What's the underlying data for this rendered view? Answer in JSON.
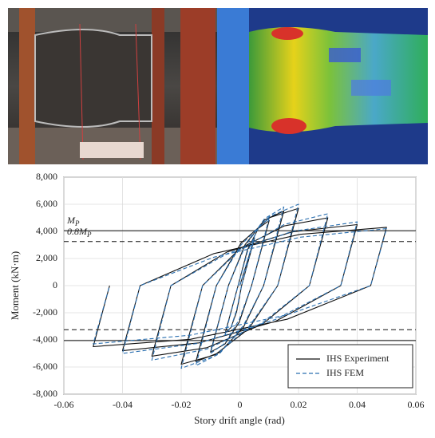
{
  "chart_data": {
    "type": "line",
    "x_label": "Story drift angle (rad)",
    "y_label": "Moment (kN·m)",
    "xlim": [
      -0.06,
      0.06
    ],
    "ylim": [
      -8000,
      8000
    ],
    "xticks": [
      -0.06,
      -0.04,
      -0.02,
      0,
      0.02,
      0.04,
      0.06
    ],
    "yticks": [
      {
        "value": -8000,
        "label": "-8,000"
      },
      {
        "value": -6000,
        "label": "-6,000"
      },
      {
        "value": -4000,
        "label": "-4,000"
      },
      {
        "value": -2000,
        "label": "-2,000"
      },
      0,
      {
        "value": 2000,
        "label": "2,000"
      },
      {
        "value": 4000,
        "label": "4,000"
      },
      {
        "value": 6000,
        "label": "6,000"
      },
      {
        "value": 8000,
        "label": "8,000"
      }
    ],
    "grid": true,
    "legend": "lower right",
    "reference_lines": [
      {
        "value": 4050,
        "label": "M",
        "subscript": "P",
        "style": "solid"
      },
      {
        "value": 3250,
        "label": "0.8M",
        "subscript": "P",
        "style": "dashed"
      },
      {
        "value": -3250,
        "style": "dashed"
      },
      {
        "value": -4050,
        "style": "solid"
      }
    ],
    "x": [
      0,
      0.005,
      0.0006,
      -0.0011,
      -0.003,
      -0.005,
      -0.0006,
      0.0026,
      0.0063,
      0.01,
      0.004,
      -0.0002,
      -0.0051,
      -0.01,
      -0.0039,
      0.0018,
      0.0084,
      0.015,
      0.0081,
      0.0012,
      -0.0069,
      -0.015,
      -0.008,
      0.0004,
      0.0102,
      0.02,
      0.0129,
      0.003,
      -0.0085,
      -0.02,
      -0.0127,
      0.0001,
      0.0151,
      0.03,
      0.0237,
      0.0076,
      -0.0112,
      -0.03,
      -0.0235,
      -0.0044,
      0.0178,
      0.04,
      0.0344,
      0.0121,
      -0.014,
      -0.04,
      -0.034,
      -0.0088,
      0.0206,
      0.05,
      0.0446,
      0.0162,
      -0.0169,
      -0.05,
      -0.0444
    ],
    "series": [
      {
        "name": "IHS Experiment",
        "color": "#111111",
        "style": "solid",
        "values": [
          0,
          3500,
          0,
          -1925,
          -3080,
          -3500,
          0,
          2640,
          4224,
          4800,
          0,
          -2695,
          -4312,
          -4900,
          0,
          3025,
          4840,
          5500,
          0,
          -3080,
          -4928,
          -5600,
          0,
          3135,
          5016,
          5700,
          0,
          -3190,
          -5104,
          -5800,
          0,
          2750,
          4400,
          5000,
          0,
          -2860,
          -4576,
          -5200,
          0,
          2475,
          3960,
          4500,
          0,
          -2640,
          -4224,
          -4800,
          0,
          2365,
          3784,
          4300,
          0,
          -2475,
          -3960,
          -4500,
          0
        ]
      },
      {
        "name": "IHS FEM",
        "color": "#2a6fb0",
        "style": "dashed",
        "values": [
          0,
          3600,
          0,
          -1800,
          -3060,
          -3600,
          0,
          2500,
          4250,
          5000,
          0,
          -2500,
          -4250,
          -5000,
          0,
          2900,
          4930,
          5800,
          0,
          -2950,
          -5015,
          -5900,
          0,
          3000,
          5100,
          6000,
          0,
          -3050,
          -5185,
          -6100,
          0,
          2650,
          4505,
          5300,
          0,
          -2750,
          -4675,
          -5500,
          0,
          2350,
          3995,
          4700,
          0,
          -2500,
          -4250,
          -5000,
          0,
          2100,
          3570,
          4200,
          0,
          -2150,
          -3655,
          -4300,
          0
        ]
      }
    ]
  }
}
